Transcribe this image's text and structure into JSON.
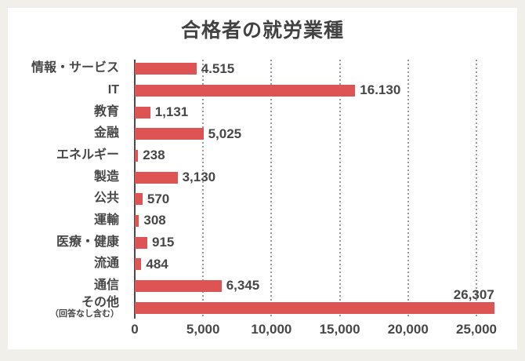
{
  "page": {
    "background_color": "#f0efe9",
    "card_background": "#ffffff"
  },
  "chart_data": {
    "type": "bar",
    "orientation": "horizontal",
    "title": "合格者の就労業種",
    "categories": [
      "情報・サービス",
      "IT",
      "教育",
      "金融",
      "エネルギー",
      "製造",
      "公共",
      "運輸",
      "医療・健康",
      "流通",
      "通信",
      "その他"
    ],
    "category_sublabels": [
      "",
      "",
      "",
      "",
      "",
      "",
      "",
      "",
      "",
      "",
      "",
      "（回答なし含む）"
    ],
    "values": [
      4515,
      16130,
      1131,
      5025,
      238,
      3130,
      570,
      308,
      915,
      484,
      6345,
      26307
    ],
    "value_labels": [
      "4.515",
      "16.130",
      "1,131",
      "5,025",
      "238",
      "3,130",
      "570",
      "308",
      "915",
      "484",
      "6,345",
      "26,307"
    ],
    "value_label_positions": [
      "right",
      "right",
      "right",
      "right",
      "right",
      "right",
      "right",
      "right",
      "right",
      "right",
      "right",
      "above"
    ],
    "xlabel": "",
    "ylabel": "",
    "xlim": [
      0,
      25000
    ],
    "xtick_values": [
      0,
      5000,
      10000,
      15000,
      20000,
      25000
    ],
    "xtick_labels": [
      "0",
      "5,000",
      "10,000",
      "15,000",
      "20,000",
      "25,000"
    ],
    "grid": "vertical-dotted",
    "legend_position": "none",
    "colors": {
      "bar": "#de5353",
      "text": "#474747",
      "grid": "#9b9b9b",
      "axis": "#4a4a4a"
    }
  }
}
